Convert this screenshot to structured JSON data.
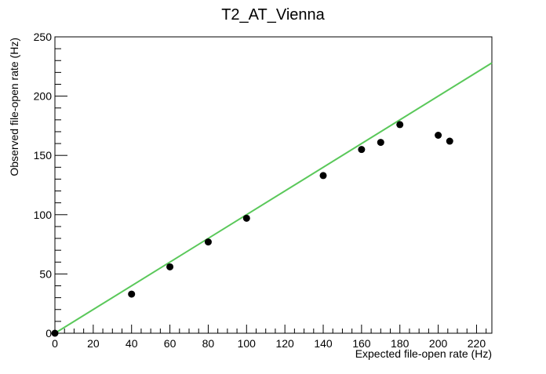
{
  "chart_data": {
    "type": "scatter",
    "title": "T2_AT_Vienna",
    "xlabel": "Expected file-open rate (Hz)",
    "ylabel": "Observed file-open rate (Hz)",
    "xlim": [
      0,
      228
    ],
    "ylim": [
      0,
      250
    ],
    "x_ticks": [
      0,
      20,
      40,
      60,
      80,
      100,
      120,
      140,
      160,
      180,
      200,
      220
    ],
    "y_ticks": [
      0,
      50,
      100,
      150,
      200,
      250
    ],
    "grid": false,
    "legend": "none",
    "series": [
      {
        "points": [
          {
            "x": 0,
            "y": 0
          },
          {
            "x": 40,
            "y": 33
          },
          {
            "x": 60,
            "y": 56
          },
          {
            "x": 80,
            "y": 77
          },
          {
            "x": 100,
            "y": 97
          },
          {
            "x": 140,
            "y": 133
          },
          {
            "x": 160,
            "y": 155
          },
          {
            "x": 170,
            "y": 161
          },
          {
            "x": 180,
            "y": 176
          },
          {
            "x": 200,
            "y": 167
          },
          {
            "x": 206,
            "y": 162
          }
        ],
        "color": "#000000"
      }
    ],
    "reference_line": {
      "x": [
        0,
        228
      ],
      "y": [
        0,
        228
      ],
      "color": "#5ac85a"
    }
  }
}
